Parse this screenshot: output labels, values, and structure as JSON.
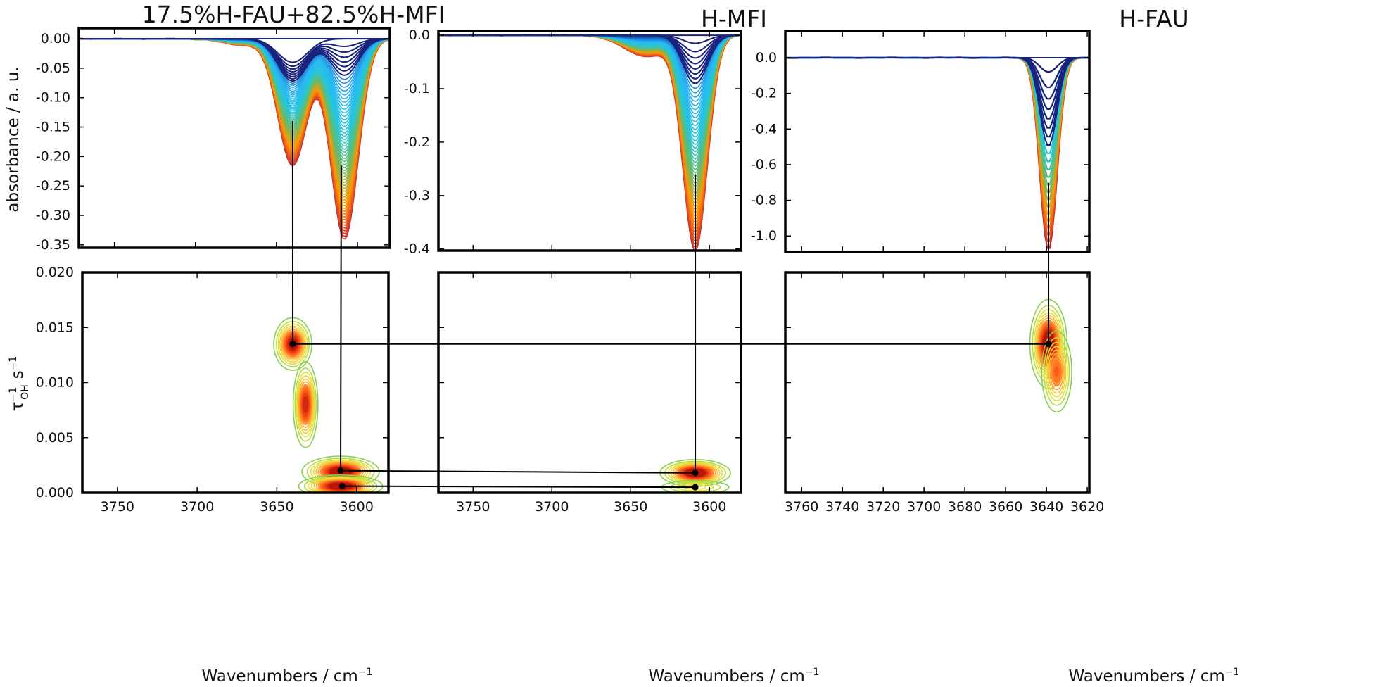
{
  "chart_data": [
    {
      "type": "line",
      "panel": "top-left",
      "title": "17.5%H-FAU+82.5%H-MFI",
      "ylabel": "absorbance / a. u.",
      "xlabel": "",
      "xlim": [
        3772,
        3580
      ],
      "ylim": [
        -0.355,
        0.018
      ],
      "xticks": [
        3750,
        3700,
        3650,
        3600
      ],
      "yticks": [
        "0.00",
        "-0.05",
        "-0.10",
        "-0.15",
        "-0.20",
        "-0.25",
        "-0.30",
        "-0.35"
      ],
      "ytick_values": [
        0,
        -0.05,
        -0.1,
        -0.15,
        -0.2,
        -0.25,
        -0.3,
        -0.35
      ],
      "n_spectra": 60,
      "final_peaks": [
        {
          "x": 3640,
          "depth": 0.215,
          "width": 13
        },
        {
          "x": 3608,
          "depth": 0.34,
          "width": 12
        }
      ],
      "final_shoulder": {
        "x": 3672,
        "depth": 0.01,
        "width": 18
      },
      "initial_peaks": [
        {
          "x": 3640,
          "depth": 0.04,
          "width": 13
        }
      ],
      "colormap": [
        "#1a237e",
        "#1565c0",
        "#29b6f6",
        "#26c6da",
        "#66bb6a",
        "#ff9800",
        "#d32f2f"
      ],
      "marker_x": [
        3640,
        3610
      ]
    },
    {
      "type": "line",
      "panel": "top-middle",
      "title": "H-MFI",
      "ylabel": "",
      "xlabel": "",
      "xlim": [
        3772,
        3580
      ],
      "ylim": [
        -0.403,
        0.008
      ],
      "xticks": [
        3750,
        3700,
        3650,
        3600
      ],
      "yticks": [
        "0.0",
        "-0.1",
        "-0.2",
        "-0.3",
        "-0.4"
      ],
      "ytick_values": [
        0,
        -0.1,
        -0.2,
        -0.3,
        -0.4
      ],
      "n_spectra": 55,
      "final_peaks": [
        {
          "x": 3609,
          "depth": 0.4,
          "width": 11
        }
      ],
      "final_shoulder": {
        "x": 3640,
        "depth": 0.04,
        "width": 20
      },
      "initial_peaks": [
        {
          "x": 3609,
          "depth": 0.015,
          "width": 12
        }
      ],
      "colormap": [
        "#1a237e",
        "#1565c0",
        "#29b6f6",
        "#26c6da",
        "#66bb6a",
        "#ff9800",
        "#d32f2f"
      ],
      "marker_x": [
        3609
      ]
    },
    {
      "type": "line",
      "panel": "top-right",
      "title": "H-FAU",
      "ylabel": "",
      "xlabel": "",
      "xlim": [
        3768,
        3619
      ],
      "ylim": [
        -1.09,
        0.15
      ],
      "xticks": [
        3760,
        3740,
        3720,
        3700,
        3680,
        3660,
        3640,
        3620
      ],
      "yticks": [
        "0.0",
        "-0.2",
        "-0.4",
        "-0.6",
        "-0.8",
        "-1.0"
      ],
      "ytick_values": [
        0,
        -0.2,
        -0.4,
        -0.6,
        -0.8,
        -1.0
      ],
      "n_spectra": 22,
      "final_peaks": [
        {
          "x": 3639,
          "depth": 1.08,
          "width": 6
        }
      ],
      "final_shoulder": {
        "x": 3639,
        "depth": 0,
        "width": 6
      },
      "initial_peaks": [
        {
          "x": 3639,
          "depth": 0.08,
          "width": 6
        }
      ],
      "colormap": [
        "#1a237e",
        "#1565c0",
        "#29b6f6",
        "#26c6da",
        "#66bb6a",
        "#ff9800",
        "#d32f2f"
      ],
      "marker_x": [
        3639
      ]
    },
    {
      "type": "heatmap",
      "panel": "bottom-left",
      "ylabel": "τ⁻¹OH s⁻¹",
      "xlabel": "Wavenumbers / cm⁻¹",
      "xlim": [
        3772,
        3580
      ],
      "ylim": [
        0,
        0.02
      ],
      "xticks": [
        3750,
        3700,
        3650,
        3600
      ],
      "yticks": [
        "0.000",
        "0.005",
        "0.010",
        "0.015",
        "0.020"
      ],
      "ytick_values": [
        0,
        0.005,
        0.01,
        0.015,
        0.02
      ],
      "contour_colors": [
        "#8bd14a",
        "#d9e63a",
        "#ffcc33",
        "#ff9933",
        "#ff6a1a",
        "#e83a12",
        "#b81208"
      ],
      "peaks": [
        {
          "x": 3640,
          "y": 0.0135,
          "amp": 1.0,
          "sx": 6,
          "sy": 0.0012
        },
        {
          "x": 3632,
          "y": 0.008,
          "amp": 0.9,
          "sx": 4,
          "sy": 0.002
        },
        {
          "x": 3610,
          "y": 0.0019,
          "amp": 1.1,
          "sx": 12,
          "sy": 0.0007
        },
        {
          "x": 3610,
          "y": 0.0006,
          "amp": 1.1,
          "sx": 13,
          "sy": 0.0005
        }
      ],
      "markers": [
        {
          "x": 3640,
          "y": 0.0135
        },
        {
          "x": 3610,
          "y": 0.002
        },
        {
          "x": 3609,
          "y": 0.0006
        }
      ]
    },
    {
      "type": "heatmap",
      "panel": "bottom-middle",
      "ylabel": "",
      "xlabel": "Wavenumbers / cm⁻¹",
      "xlim": [
        3772,
        3580
      ],
      "ylim": [
        0,
        0.02
      ],
      "xticks": [
        3750,
        3700,
        3650,
        3600
      ],
      "yticks": [
        "",
        "",
        "",
        "",
        ""
      ],
      "ytick_values": [
        0,
        0.005,
        0.01,
        0.015,
        0.02
      ],
      "contour_colors": [
        "#8bd14a",
        "#d9e63a",
        "#ffcc33",
        "#ff9933",
        "#ff6a1a",
        "#e83a12",
        "#b81208"
      ],
      "peaks": [
        {
          "x": 3609,
          "y": 0.0018,
          "amp": 1.1,
          "sx": 11,
          "sy": 0.0006
        },
        {
          "x": 3609,
          "y": 0.0005,
          "amp": 0.35,
          "sx": 14,
          "sy": 0.0004
        }
      ],
      "markers": [
        {
          "x": 3609,
          "y": 0.0018
        },
        {
          "x": 3609,
          "y": 0.0005
        }
      ]
    },
    {
      "type": "heatmap",
      "panel": "bottom-right",
      "ylabel": "",
      "xlabel": "Wavenumbers / cm⁻¹",
      "xlim": [
        3768,
        3619
      ],
      "ylim": [
        0,
        0.02
      ],
      "xticks": [
        3760,
        3740,
        3720,
        3700,
        3680,
        3660,
        3640,
        3620
      ],
      "yticks": [
        "",
        "",
        "",
        "",
        ""
      ],
      "ytick_values": [
        0,
        0.005,
        0.01,
        0.015,
        0.02
      ],
      "contour_colors": [
        "#8bd14a",
        "#d9e63a",
        "#ffcc33",
        "#ff9933",
        "#ff6a1a",
        "#e83a12",
        "#b81208"
      ],
      "peaks": [
        {
          "x": 3639,
          "y": 0.0135,
          "amp": 1.1,
          "sx": 4.5,
          "sy": 0.002
        },
        {
          "x": 3635,
          "y": 0.011,
          "amp": 0.7,
          "sx": 4,
          "sy": 0.002
        }
      ],
      "markers": [
        {
          "x": 3639,
          "y": 0.0135
        }
      ]
    }
  ],
  "connectors": [
    {
      "from": [
        0,
        3640
      ],
      "to": [
        3,
        3640,
        0.0135
      ]
    },
    {
      "from": [
        0,
        3610
      ],
      "to": [
        3,
        3610,
        0.002
      ]
    },
    {
      "from": [
        1,
        3609
      ],
      "to": [
        4,
        3609,
        0.0018
      ]
    },
    {
      "from": [
        2,
        3639
      ],
      "to": [
        5,
        3639,
        0.0135
      ]
    },
    {
      "from_point": [
        3,
        3640,
        0.0135
      ],
      "to_point": [
        5,
        3639,
        0.0135
      ]
    },
    {
      "from_point": [
        3,
        3610,
        0.002
      ],
      "to_point": [
        4,
        3609,
        0.0018
      ]
    },
    {
      "from_point": [
        3,
        3609,
        0.0006
      ],
      "to_point": [
        4,
        3609,
        0.0005
      ]
    }
  ]
}
